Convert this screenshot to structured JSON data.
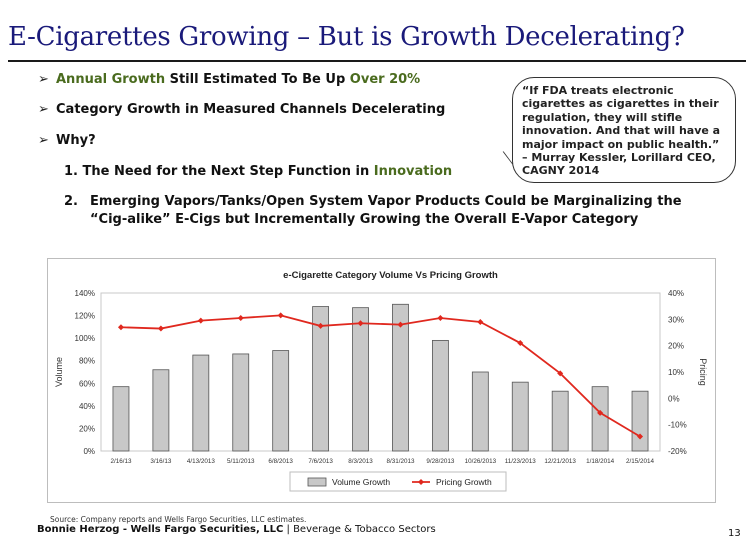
{
  "slide": {
    "title": "E-Cigarettes Growing – But is Growth Decelerating?",
    "bullets": [
      {
        "parts": [
          "Annual Growth",
          " Still Estimated To Be Up ",
          "Over 20%"
        ]
      },
      {
        "text": "Category Growth in Measured Channels Decelerating"
      },
      {
        "text": "Why?"
      }
    ],
    "numbered": [
      {
        "num": "1.",
        "parts": [
          "The Need for the Next Step Function in ",
          "Innovation"
        ]
      },
      {
        "num": "2.",
        "text": "Emerging Vapors/Tanks/Open System Vapor Products Could be Marginalizing the “Cig-alike” E-Cigs but Incrementally Growing the Overall E-Vapor Category"
      }
    ],
    "quote": "“If FDA treats electronic cigarettes as cigarettes in their regulation, they will stifle innovation. And that will have a major impact on public health.” – Murray Kessler, Lorillard CEO, CAGNY 2014",
    "footer_source": "Source: Company reports and Wells Fargo Securities, LLC estimates.",
    "footer_author": "Bonnie Herzog - Wells Fargo Securities, LLC",
    "footer_sector": " | Beverage & Tobacco Sectors",
    "page_number": "13"
  },
  "chart_data": {
    "type": "bar",
    "title": "e-Cigarette Category Volume Vs Pricing Growth",
    "categories": [
      "2/16/13",
      "3/16/13",
      "4/13/2013",
      "5/11/2013",
      "6/8/2013",
      "7/6/2013",
      "8/3/2013",
      "8/31/2013",
      "9/28/2013",
      "10/26/2013",
      "11/23/2013",
      "12/21/2013",
      "1/18/2014",
      "2/15/2014"
    ],
    "series": [
      {
        "name": "Volume Growth",
        "type": "bar",
        "axis": "left",
        "color": "#c8c8c8",
        "values": [
          57,
          72,
          85,
          86,
          89,
          128,
          127,
          130,
          98,
          70,
          61,
          53,
          57,
          53
        ]
      },
      {
        "name": "Pricing Growth",
        "type": "line",
        "axis": "right",
        "color": "#e0281e",
        "values": [
          27,
          26.5,
          29.5,
          30.5,
          31.5,
          27.5,
          28.5,
          28,
          30.5,
          29,
          21,
          9.5,
          -5.5,
          -14.5
        ]
      }
    ],
    "ylabel": "Volume",
    "y2label": "Pricing",
    "ylim": [
      0,
      140
    ],
    "y2lim": [
      -20,
      40
    ],
    "yticks": [
      "0%",
      "20%",
      "40%",
      "60%",
      "80%",
      "100%",
      "120%",
      "140%"
    ],
    "y2ticks": [
      "-20%",
      "-10%",
      "0%",
      "10%",
      "20%",
      "30%",
      "40%"
    ],
    "legend": "bottom"
  }
}
